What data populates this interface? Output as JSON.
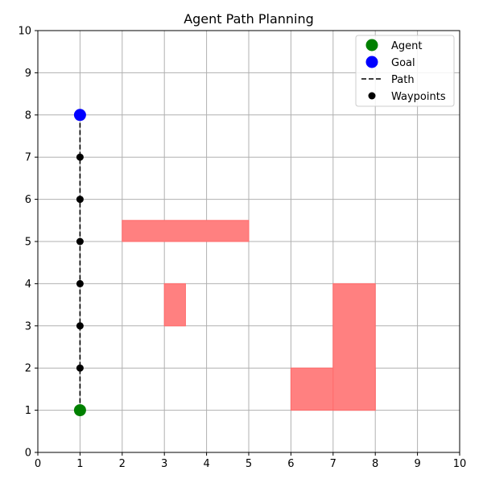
{
  "chart_data": {
    "type": "scatter",
    "title": "Agent Path Planning",
    "xlabel": "",
    "ylabel": "",
    "xlim": [
      0,
      10
    ],
    "ylim": [
      0,
      10
    ],
    "xticks": [
      "0",
      "1",
      "2",
      "3",
      "4",
      "5",
      "6",
      "7",
      "8",
      "9",
      "10"
    ],
    "yticks": [
      "0",
      "1",
      "2",
      "3",
      "4",
      "5",
      "6",
      "7",
      "8",
      "9",
      "10"
    ],
    "grid": true,
    "legend_position": "top-right",
    "agent": {
      "name": "Agent",
      "x": 1,
      "y": 1,
      "color": "#008000"
    },
    "goal": {
      "name": "Goal",
      "x": 1,
      "y": 8,
      "color": "#0000ff"
    },
    "path": {
      "name": "Path",
      "style": "dashed",
      "color": "#000000",
      "points": [
        [
          1,
          1
        ],
        [
          1,
          2
        ],
        [
          1,
          3
        ],
        [
          1,
          4
        ],
        [
          1,
          5
        ],
        [
          1,
          6
        ],
        [
          1,
          7
        ],
        [
          1,
          8
        ]
      ]
    },
    "waypoints": {
      "name": "Waypoints",
      "color": "#000000",
      "points": [
        [
          1,
          2
        ],
        [
          1,
          3
        ],
        [
          1,
          4
        ],
        [
          1,
          5
        ],
        [
          1,
          6
        ],
        [
          1,
          7
        ]
      ]
    },
    "obstacles": {
      "color": "#ff8080",
      "rects": [
        {
          "x": 2,
          "y": 5,
          "w": 3,
          "h": 0.5
        },
        {
          "x": 3,
          "y": 3,
          "w": 0.5,
          "h": 1
        },
        {
          "x": 6,
          "y": 1,
          "w": 2,
          "h": 1
        },
        {
          "x": 7,
          "y": 1,
          "w": 1,
          "h": 3
        }
      ]
    }
  }
}
